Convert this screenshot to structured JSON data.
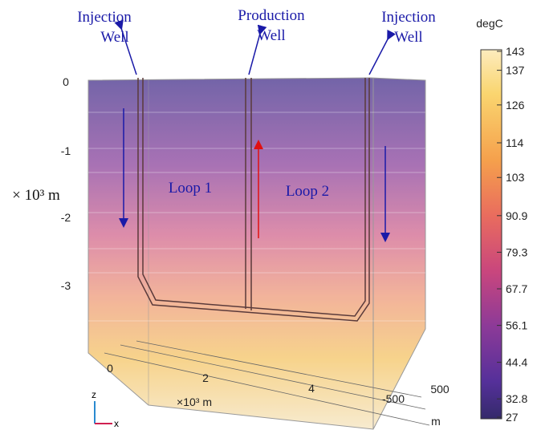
{
  "labels": {
    "injection_left": [
      "Injection",
      "Well"
    ],
    "production": [
      "Production",
      "Well"
    ],
    "injection_right": [
      "Injection",
      "Well"
    ],
    "loop1": "Loop 1",
    "loop2": "Loop 2"
  },
  "z_axis": {
    "unit": "× 10³ m",
    "ticks": [
      "0",
      "-1",
      "-2",
      "-3"
    ]
  },
  "x_axis": {
    "unit": "×10³ m",
    "ticks": [
      "0",
      "2",
      "4"
    ]
  },
  "y_axis": {
    "unit": "m",
    "ticks": [
      "500",
      "-500"
    ]
  },
  "colorbar": {
    "unit": "degC",
    "ticks": [
      143,
      137,
      126,
      114,
      103,
      90.9,
      79.3,
      67.7,
      56.1,
      44.4,
      32.8,
      27
    ]
  },
  "triad": {
    "z": "z",
    "x": "x"
  }
}
